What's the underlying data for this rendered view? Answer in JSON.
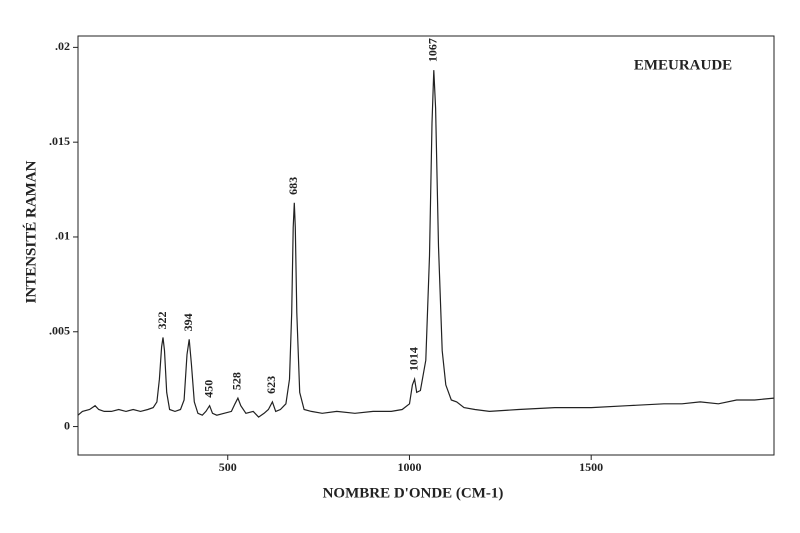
{
  "chart_data": {
    "type": "line",
    "title": "EMEURAUDE",
    "x_label": "NOMBRE D'ONDE (CM-1)",
    "y_label": "INTENSITÉ RAMAN",
    "color": "#222222",
    "xlim": [
      88,
      2003
    ],
    "ylim": [
      -0.0015,
      0.0206
    ],
    "xticks": [
      500,
      1000,
      1500
    ],
    "yticks": [
      0,
      {
        "value": 0.005,
        "label": ".005"
      },
      {
        "value": 0.01,
        "label": ".01"
      },
      {
        "value": 0.015,
        "label": ".015"
      },
      {
        "value": 0.02,
        "label": ".02"
      }
    ],
    "x": [
      88,
      100,
      120,
      135,
      145,
      160,
      180,
      200,
      220,
      240,
      260,
      280,
      295,
      305,
      312,
      318,
      322,
      326,
      332,
      340,
      355,
      370,
      380,
      388,
      394,
      400,
      408,
      418,
      430,
      440,
      450,
      458,
      470,
      490,
      510,
      520,
      528,
      536,
      550,
      570,
      585,
      600,
      612,
      623,
      632,
      645,
      660,
      670,
      676,
      680,
      683,
      686,
      690,
      698,
      710,
      730,
      760,
      800,
      850,
      900,
      950,
      980,
      1000,
      1008,
      1014,
      1020,
      1030,
      1045,
      1055,
      1062,
      1067,
      1072,
      1080,
      1090,
      1100,
      1115,
      1130,
      1150,
      1180,
      1220,
      1300,
      1400,
      1500,
      1600,
      1700,
      1750,
      1800,
      1850,
      1900,
      1950,
      2003
    ],
    "values": [
      0.0006,
      0.0008,
      0.0009,
      0.0011,
      0.0009,
      0.0008,
      0.0008,
      0.0009,
      0.0008,
      0.0009,
      0.0008,
      0.0009,
      0.001,
      0.0013,
      0.0025,
      0.0042,
      0.0047,
      0.004,
      0.0018,
      0.0009,
      0.0008,
      0.0009,
      0.0014,
      0.0038,
      0.0046,
      0.0033,
      0.0013,
      0.0007,
      0.0006,
      0.0008,
      0.0011,
      0.0007,
      0.0006,
      0.0007,
      0.0008,
      0.0012,
      0.0015,
      0.0011,
      0.0007,
      0.0008,
      0.0005,
      0.0007,
      0.0009,
      0.0013,
      0.0008,
      0.0009,
      0.0012,
      0.0025,
      0.006,
      0.0105,
      0.0118,
      0.0105,
      0.006,
      0.0018,
      0.0009,
      0.0008,
      0.0007,
      0.0008,
      0.0007,
      0.0008,
      0.0008,
      0.0009,
      0.0012,
      0.0022,
      0.0025,
      0.0018,
      0.0019,
      0.0035,
      0.009,
      0.016,
      0.0188,
      0.0168,
      0.0095,
      0.004,
      0.0022,
      0.0014,
      0.0013,
      0.001,
      0.0009,
      0.0008,
      0.0009,
      0.001,
      0.001,
      0.0011,
      0.0012,
      0.0012,
      0.0013,
      0.0012,
      0.0014,
      0.0014,
      0.0015
    ],
    "annotations": [
      {
        "text": "322",
        "x": 322
      },
      {
        "text": "394",
        "x": 394
      },
      {
        "text": "450",
        "x": 450
      },
      {
        "text": "528",
        "x": 528
      },
      {
        "text": "623",
        "x": 623
      },
      {
        "text": "683",
        "x": 683
      },
      {
        "text": "1014",
        "x": 1014
      },
      {
        "text": "1067",
        "x": 1067
      }
    ]
  }
}
